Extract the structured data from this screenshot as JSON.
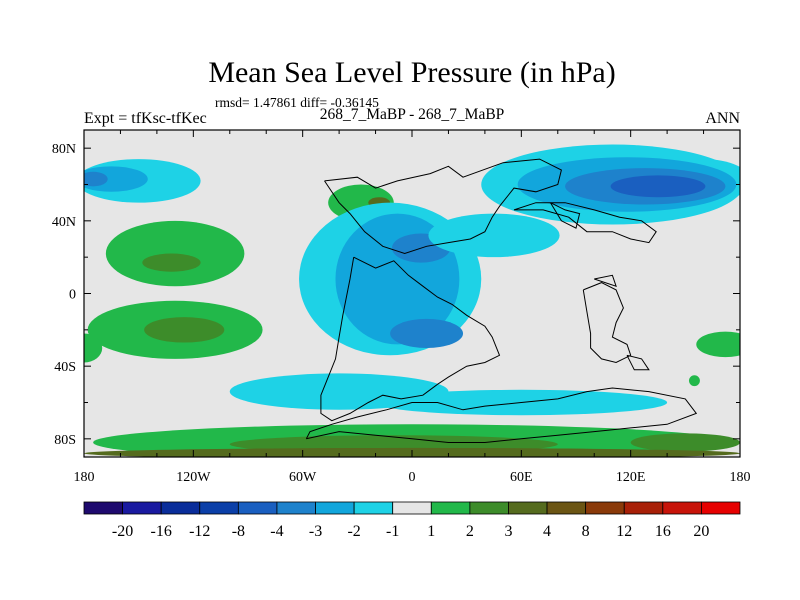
{
  "chart_data": {
    "type": "heatmap",
    "title": "Mean Sea Level Pressure (in hPa)",
    "stats_text": "rmsd= 1.47861 diff= -0.36145",
    "left_label": "Expt = tfKsc-tfKec",
    "center_label": "268_7_MaBP - 268_7_MaBP",
    "right_label": "ANN",
    "xlim": [
      -180,
      180
    ],
    "ylim": [
      -90,
      90
    ],
    "x_ticks": [
      {
        "value": -180,
        "label": "180"
      },
      {
        "value": -120,
        "label": "120W"
      },
      {
        "value": -60,
        "label": "60W"
      },
      {
        "value": 0,
        "label": "0"
      },
      {
        "value": 60,
        "label": "60E"
      },
      {
        "value": 120,
        "label": "120E"
      },
      {
        "value": 180,
        "label": "180"
      }
    ],
    "y_ticks": [
      {
        "value": 80,
        "label": "80N"
      },
      {
        "value": 40,
        "label": "40N"
      },
      {
        "value": 0,
        "label": "0"
      },
      {
        "value": -40,
        "label": "40S"
      },
      {
        "value": -80,
        "label": "80S"
      }
    ],
    "colorbar": {
      "levels": [
        "-20",
        "-16",
        "-12",
        "-8",
        "-4",
        "-3",
        "-2",
        "-1",
        "1",
        "2",
        "3",
        "4",
        "8",
        "12",
        "16",
        "20"
      ],
      "colors": [
        "#1e0a6e",
        "#1a1aa0",
        "#0a2d9a",
        "#0b3fa8",
        "#1a5fc0",
        "#1e82cc",
        "#12a6dc",
        "#1ed2e6",
        "#e6e6e6",
        "#22b84a",
        "#3d8c2a",
        "#556b1e",
        "#6b5514",
        "#8a3a0a",
        "#a82008",
        "#c8140a",
        "#e60000"
      ]
    },
    "background_level_color": "#e6e6e6",
    "regions": [
      {
        "name": "north-pacific-low",
        "level": "-2 to -1",
        "color": "#1ed2e6",
        "cx": -150,
        "cy": 62,
        "rx": 34,
        "ry": 12
      },
      {
        "name": "north-pacific-low-core",
        "level": "-3 to -2",
        "color": "#12a6dc",
        "cx": -165,
        "cy": 63,
        "rx": 20,
        "ry": 7
      },
      {
        "name": "north-pacific-low-deep",
        "level": "-4 to -3",
        "color": "#1e82cc",
        "cx": -175,
        "cy": 63,
        "rx": 8,
        "ry": 4
      },
      {
        "name": "east-pacific-low",
        "level": "-2 to -1",
        "color": "#1ed2e6",
        "cx": 160,
        "cy": 62,
        "rx": 26,
        "ry": 12
      },
      {
        "name": "asia-north-low",
        "level": "-2 to -1",
        "color": "#1ed2e6",
        "cx": 110,
        "cy": 60,
        "rx": 72,
        "ry": 22
      },
      {
        "name": "asia-north-low-mid",
        "level": "-3 to -2",
        "color": "#12a6dc",
        "cx": 118,
        "cy": 60,
        "rx": 60,
        "ry": 15
      },
      {
        "name": "asia-north-low-inner",
        "level": "-4 to -3",
        "color": "#1e82cc",
        "cx": 128,
        "cy": 59,
        "rx": 44,
        "ry": 10
      },
      {
        "name": "asia-north-low-core",
        "level": "-8 to -4",
        "color": "#1a5fc0",
        "cx": 135,
        "cy": 59,
        "rx": 26,
        "ry": 6
      },
      {
        "name": "north-central-high",
        "level": "1 to 2",
        "color": "#22b84a",
        "cx": -28,
        "cy": 50,
        "rx": 18,
        "ry": 10
      },
      {
        "name": "north-central-high-core",
        "level": "3 to 4",
        "color": "#556b1e",
        "cx": -18,
        "cy": 50,
        "rx": 6,
        "ry": 3
      },
      {
        "name": "north-pacific-high",
        "level": "1 to 2",
        "color": "#22b84a",
        "cx": -130,
        "cy": 22,
        "rx": 38,
        "ry": 18
      },
      {
        "name": "north-pacific-high-core",
        "level": "2 to 3",
        "color": "#3d8c2a",
        "cx": -132,
        "cy": 17,
        "rx": 16,
        "ry": 5
      },
      {
        "name": "south-pacific-high",
        "level": "1 to 2",
        "color": "#22b84a",
        "cx": -130,
        "cy": -20,
        "rx": 48,
        "ry": 16
      },
      {
        "name": "south-pacific-high-core",
        "level": "2 to 3",
        "color": "#3d8c2a",
        "cx": -125,
        "cy": -20,
        "rx": 22,
        "ry": 7
      },
      {
        "name": "west-edge-high",
        "level": "1 to 2",
        "color": "#22b84a",
        "cx": -180,
        "cy": -30,
        "rx": 10,
        "ry": 8
      },
      {
        "name": "east-edge-high",
        "level": "1 to 2",
        "color": "#22b84a",
        "cx": 172,
        "cy": -28,
        "rx": 16,
        "ry": 7
      },
      {
        "name": "south-east-high-spot",
        "level": "1 to 2",
        "color": "#22b84a",
        "cx": 155,
        "cy": -48,
        "rx": 3,
        "ry": 3
      },
      {
        "name": "tethys-low",
        "level": "-2 to -1",
        "color": "#1ed2e6",
        "cx": -12,
        "cy": 8,
        "rx": 50,
        "ry": 42
      },
      {
        "name": "tethys-low-mid",
        "level": "-3 to -2",
        "color": "#12a6dc",
        "cx": -8,
        "cy": 8,
        "rx": 34,
        "ry": 36
      },
      {
        "name": "tethys-low-north-core",
        "level": "-4 to -3",
        "color": "#1e82cc",
        "cx": 5,
        "cy": 25,
        "rx": 16,
        "ry": 8
      },
      {
        "name": "tethys-low-south-core",
        "level": "-4 to -3",
        "color": "#1e82cc",
        "cx": 8,
        "cy": -22,
        "rx": 20,
        "ry": 8
      },
      {
        "name": "eastern-tethys-low",
        "level": "-2 to -1",
        "color": "#1ed2e6",
        "cx": 45,
        "cy": 32,
        "rx": 36,
        "ry": 12
      },
      {
        "name": "southern-ocean-low",
        "level": "-2 to -1",
        "color": "#1ed2e6",
        "cx": -40,
        "cy": -54,
        "rx": 60,
        "ry": 10
      },
      {
        "name": "southern-ocean-low-2",
        "level": "-2 to -1",
        "color": "#1ed2e6",
        "cx": 60,
        "cy": -60,
        "rx": 80,
        "ry": 7
      },
      {
        "name": "antarctic-high",
        "level": "1 to 2",
        "color": "#22b84a",
        "cx": 0,
        "cy": -82,
        "rx": 175,
        "ry": 10
      },
      {
        "name": "antarctic-high-core",
        "level": "2 to 3",
        "color": "#3d8c2a",
        "cx": -10,
        "cy": -83,
        "rx": 90,
        "ry": 5
      },
      {
        "name": "antarctic-high-east",
        "level": "2 to 3",
        "color": "#3d8c2a",
        "cx": 150,
        "cy": -82,
        "rx": 30,
        "ry": 5
      },
      {
        "name": "antarctic-high-deep",
        "level": "3 to 4",
        "color": "#556b1e",
        "cx": 0,
        "cy": -88,
        "rx": 180,
        "ry": 3
      }
    ],
    "coastlines": [
      [
        [
          -48,
          62
        ],
        [
          -30,
          64
        ],
        [
          -20,
          58
        ],
        [
          -8,
          62
        ],
        [
          10,
          66
        ],
        [
          20,
          70
        ],
        [
          28,
          64
        ],
        [
          50,
          72
        ],
        [
          70,
          74
        ],
        [
          82,
          68
        ],
        [
          80,
          60
        ],
        [
          68,
          56
        ],
        [
          56,
          58
        ],
        [
          48,
          48
        ],
        [
          44,
          42
        ],
        [
          40,
          34
        ],
        [
          32,
          30
        ],
        [
          20,
          28
        ],
        [
          8,
          26
        ],
        [
          -4,
          22
        ],
        [
          -16,
          26
        ],
        [
          -26,
          34
        ],
        [
          -34,
          44
        ],
        [
          -40,
          50
        ],
        [
          -48,
          62
        ]
      ],
      [
        [
          -32,
          20
        ],
        [
          -20,
          14
        ],
        [
          -10,
          18
        ],
        [
          -2,
          10
        ],
        [
          6,
          4
        ],
        [
          14,
          -2
        ],
        [
          22,
          -6
        ],
        [
          30,
          -12
        ],
        [
          40,
          -18
        ],
        [
          44,
          -24
        ],
        [
          48,
          -34
        ],
        [
          40,
          -38
        ],
        [
          30,
          -40
        ],
        [
          20,
          -46
        ],
        [
          14,
          -50
        ],
        [
          6,
          -56
        ],
        [
          -6,
          -58
        ],
        [
          -16,
          -56
        ],
        [
          -24,
          -60
        ],
        [
          -34,
          -66
        ],
        [
          -44,
          -70
        ],
        [
          -50,
          -66
        ],
        [
          -50,
          -56
        ],
        [
          -46,
          -46
        ],
        [
          -42,
          -36
        ],
        [
          -40,
          -24
        ],
        [
          -38,
          -12
        ],
        [
          -36,
          -2
        ],
        [
          -34,
          8
        ],
        [
          -32,
          20
        ]
      ],
      [
        [
          -58,
          -80
        ],
        [
          -40,
          -76
        ],
        [
          -20,
          -78
        ],
        [
          0,
          -80
        ],
        [
          20,
          -82
        ],
        [
          40,
          -82
        ],
        [
          60,
          -80
        ],
        [
          80,
          -78
        ],
        [
          100,
          -76
        ],
        [
          120,
          -74
        ],
        [
          140,
          -72
        ],
        [
          156,
          -66
        ],
        [
          150,
          -58
        ],
        [
          130,
          -54
        ],
        [
          110,
          -52
        ],
        [
          96,
          -54
        ],
        [
          80,
          -58
        ],
        [
          60,
          -60
        ],
        [
          40,
          -62
        ],
        [
          28,
          -64
        ],
        [
          14,
          -60
        ],
        [
          0,
          -60
        ],
        [
          -14,
          -64
        ],
        [
          -30,
          -68
        ],
        [
          -44,
          -72
        ],
        [
          -56,
          -76
        ],
        [
          -58,
          -80
        ]
      ],
      [
        [
          56,
          46
        ],
        [
          72,
          46
        ],
        [
          86,
          42
        ],
        [
          96,
          34
        ],
        [
          110,
          34
        ],
        [
          120,
          30
        ],
        [
          130,
          28
        ],
        [
          134,
          34
        ],
        [
          126,
          40
        ],
        [
          114,
          42
        ],
        [
          100,
          46
        ],
        [
          84,
          50
        ],
        [
          68,
          50
        ],
        [
          56,
          46
        ]
      ],
      [
        [
          76,
          50
        ],
        [
          84,
          46
        ],
        [
          92,
          44
        ],
        [
          90,
          36
        ],
        [
          82,
          40
        ],
        [
          76,
          50
        ]
      ],
      [
        [
          94,
          2
        ],
        [
          104,
          6
        ],
        [
          112,
          2
        ],
        [
          116,
          -8
        ],
        [
          112,
          -16
        ],
        [
          110,
          -24
        ],
        [
          118,
          -28
        ],
        [
          120,
          -34
        ],
        [
          112,
          -38
        ],
        [
          104,
          -36
        ],
        [
          98,
          -30
        ],
        [
          98,
          -22
        ],
        [
          96,
          -10
        ],
        [
          94,
          2
        ]
      ],
      [
        [
          100,
          8
        ],
        [
          110,
          10
        ],
        [
          112,
          4
        ],
        [
          100,
          8
        ]
      ],
      [
        [
          118,
          -34
        ],
        [
          126,
          -36
        ],
        [
          130,
          -42
        ],
        [
          122,
          -42
        ],
        [
          118,
          -34
        ]
      ]
    ]
  }
}
